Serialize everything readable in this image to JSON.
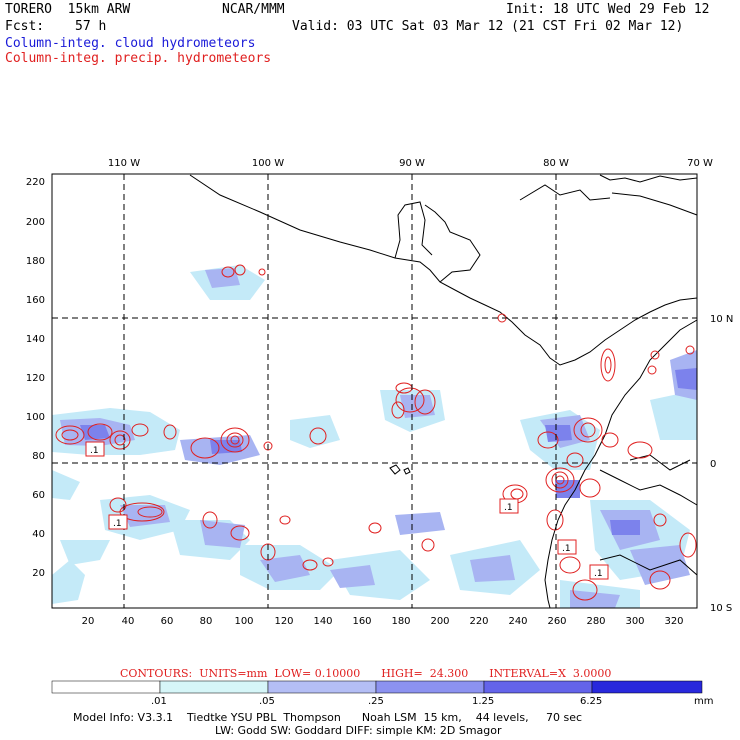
{
  "header": {
    "model": "TORERO  15km ARW",
    "org": "NCAR/MMM",
    "init": "Init: 18 UTC Wed 29 Feb 12",
    "fcst_label": "Fcst:",
    "fcst_value": "57 h",
    "valid": "Valid: 03 UTC Sat 03 Mar 12 (21 CST Fri 02 Mar 12)",
    "field1": "Column-integ. cloud hydrometeors",
    "field2": "Column-integ. precip. hydrometeors"
  },
  "map": {
    "top_lon_labels": [
      "110 W",
      "100 W",
      "90 W",
      "80 W",
      "70 W"
    ],
    "right_lat_labels": [
      "10 N",
      "0",
      "10 S"
    ],
    "y_ticks": [
      "220",
      "200",
      "180",
      "160",
      "140",
      "120",
      "100",
      "80",
      "60",
      "40",
      "20"
    ],
    "x_ticks": [
      "20",
      "40",
      "60",
      "80",
      "100",
      "120",
      "140",
      "160",
      "180",
      "200",
      "220",
      "240",
      "260",
      "280",
      "300",
      "320"
    ],
    "box_labels": [
      ".1",
      ".1",
      ".1",
      ".1",
      ".1"
    ]
  },
  "contour_info": {
    "text": "CONTOURS:  UNITS=mm  LOW= 0.10000      HIGH=  24.300      INTERVAL=X  3.0000"
  },
  "colorbar": {
    "labels": [
      ".01",
      ".05",
      ".25",
      "1.25",
      "6.25"
    ],
    "unit": "mm",
    "colors": [
      "#ffffff",
      "#d6f6f8",
      "#b4bef5",
      "#8c92f0",
      "#6464ea",
      "#2828dc"
    ]
  },
  "footer": {
    "line1": "Model Info: V3.3.1    Tiedtke YSU PBL  Thompson      Noah LSM  15 km,    44 levels,     70 sec",
    "line2": "LW: Godd SW: Goddard DIFF: simple KM: 2D Smagor"
  },
  "colors": {
    "cloud_light": "#c4eaf8",
    "cloud_mid": "#a8b4f2",
    "cloud_dark": "#7c82ec",
    "precip": "#e02020",
    "coast": "#000000"
  }
}
